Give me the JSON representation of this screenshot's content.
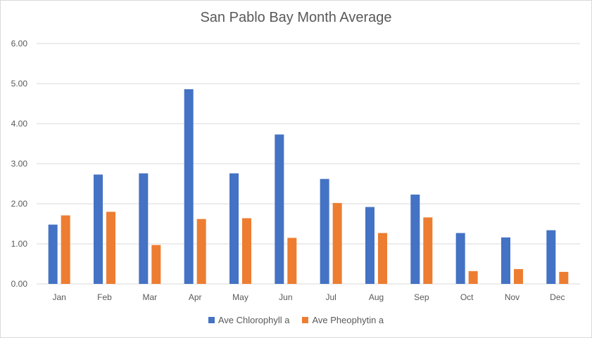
{
  "chart_data": {
    "type": "bar",
    "title": "San Pablo Bay Month Average",
    "xlabel": "",
    "ylabel": "",
    "categories": [
      "Jan",
      "Feb",
      "Mar",
      "Apr",
      "May",
      "Jun",
      "Jul",
      "Aug",
      "Sep",
      "Oct",
      "Nov",
      "Dec"
    ],
    "series": [
      {
        "name": "Ave Chlorophyll a",
        "color": "#4472c4",
        "values": [
          1.48,
          2.73,
          2.76,
          4.86,
          2.76,
          3.73,
          2.62,
          1.92,
          2.23,
          1.27,
          1.16,
          1.34
        ]
      },
      {
        "name": "Ave Pheophytin a",
        "color": "#ed7d31",
        "values": [
          1.71,
          1.8,
          0.97,
          1.62,
          1.64,
          1.15,
          2.02,
          1.27,
          1.66,
          0.32,
          0.37,
          0.3
        ]
      }
    ],
    "yticks": [
      "0.00",
      "1.00",
      "2.00",
      "3.00",
      "4.00",
      "5.00",
      "6.00"
    ],
    "ylim": [
      0,
      6
    ],
    "grid": true,
    "legend": "bottom"
  }
}
